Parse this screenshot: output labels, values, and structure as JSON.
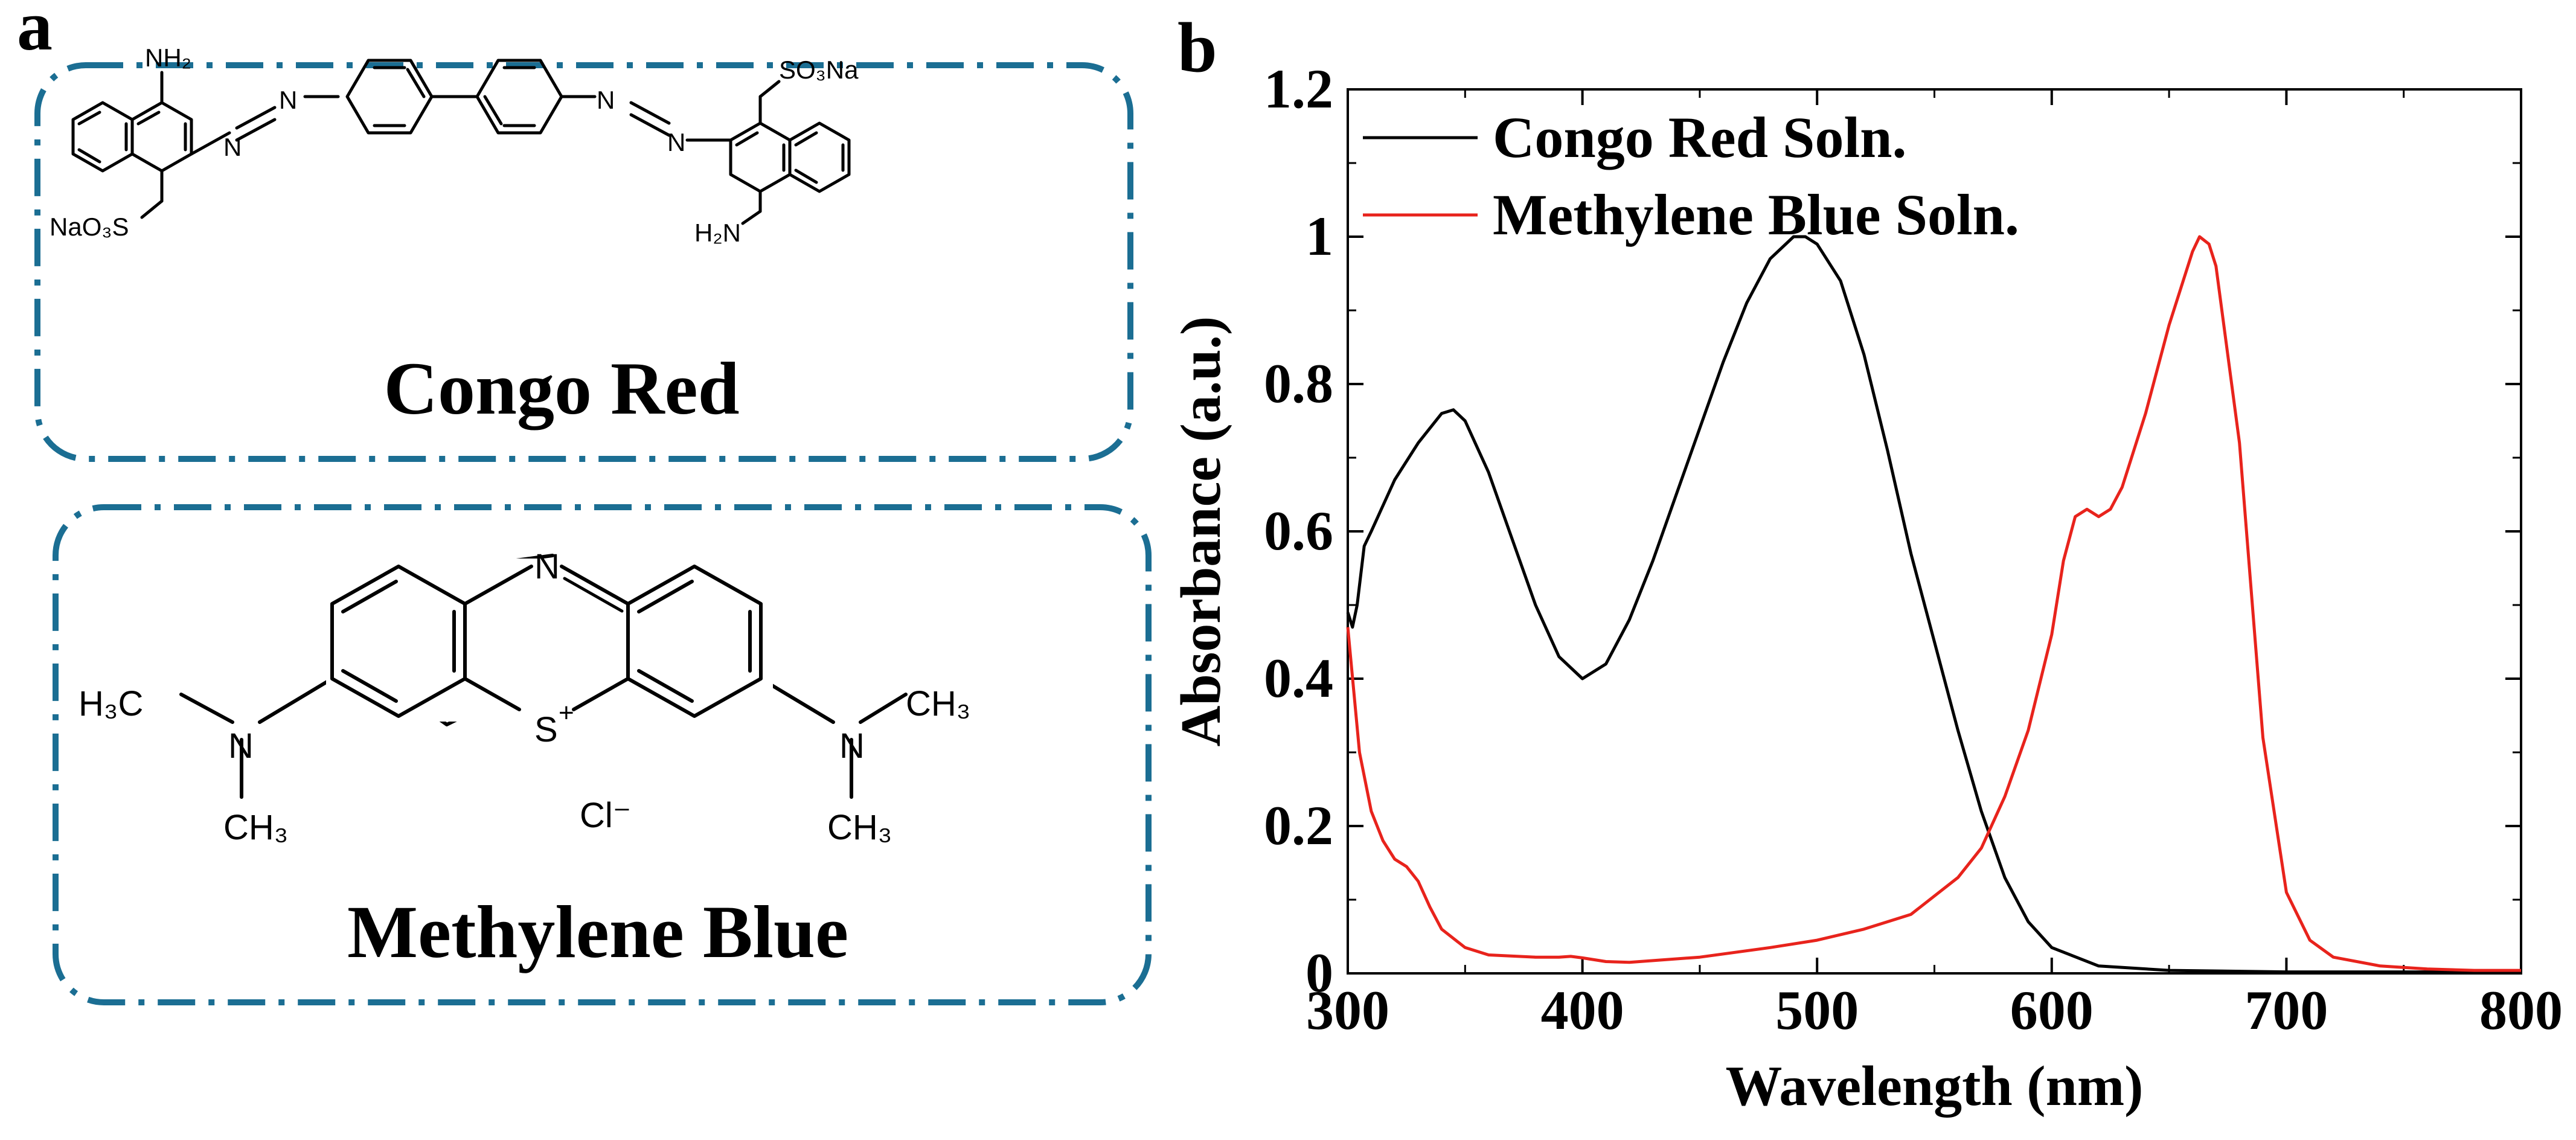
{
  "panel_a": {
    "label": "a",
    "box_color": "#1b6e93",
    "congo_red": {
      "name": "Congo Red",
      "groups": {
        "nh2_top": "NH₂",
        "nh2_bottom": "H₂N",
        "so3na_left": "NaO₃S",
        "so3na_right": "SO₃Na",
        "n": "N"
      }
    },
    "methylene_blue": {
      "name": "Methylene Blue",
      "groups": {
        "n_ring": "N",
        "s_ring": "S",
        "s_charge": "+",
        "h3c": "H₃C",
        "ch3": "CH₃",
        "n_amine": "N",
        "chloride": "Cl⁻"
      }
    }
  },
  "panel_b": {
    "label": "b"
  },
  "chart_data": {
    "type": "line",
    "xlabel": "Wavelength (nm)",
    "ylabel": "Absorbance (a.u.)",
    "xlim": [
      300,
      800
    ],
    "ylim": [
      0,
      1.2
    ],
    "xticks": [
      300,
      400,
      500,
      600,
      700,
      800
    ],
    "yticks": [
      0,
      0.2,
      0.4,
      0.6,
      0.8,
      1,
      1.2
    ],
    "ytick_labels": [
      "0",
      "0.2",
      "0.4",
      "0.6",
      "0.8",
      "1",
      "1.2"
    ],
    "grid": false,
    "legend": "top-left",
    "series": [
      {
        "name": "Congo Red Soln.",
        "color": "#000000",
        "x": [
          300,
          302,
          304,
          307,
          310,
          320,
          330,
          340,
          345,
          350,
          360,
          370,
          380,
          390,
          400,
          410,
          420,
          430,
          440,
          450,
          460,
          470,
          480,
          490,
          495,
          500,
          510,
          520,
          530,
          540,
          550,
          560,
          570,
          580,
          590,
          600,
          620,
          650,
          700,
          800
        ],
        "y": [
          0.49,
          0.47,
          0.5,
          0.58,
          0.6,
          0.67,
          0.72,
          0.76,
          0.765,
          0.75,
          0.68,
          0.59,
          0.5,
          0.43,
          0.4,
          0.42,
          0.48,
          0.56,
          0.65,
          0.74,
          0.83,
          0.91,
          0.97,
          1.0,
          1.0,
          0.99,
          0.94,
          0.84,
          0.71,
          0.57,
          0.45,
          0.33,
          0.22,
          0.13,
          0.07,
          0.035,
          0.01,
          0.004,
          0.002,
          0.002
        ]
      },
      {
        "name": "Methylene Blue Soln.",
        "color": "#e8231c",
        "x": [
          300,
          305,
          310,
          315,
          320,
          325,
          330,
          335,
          340,
          350,
          360,
          380,
          390,
          395,
          400,
          410,
          420,
          450,
          480,
          500,
          520,
          540,
          560,
          570,
          580,
          590,
          600,
          605,
          610,
          615,
          620,
          625,
          630,
          640,
          650,
          660,
          663,
          667,
          670,
          680,
          690,
          700,
          710,
          720,
          740,
          760,
          780,
          800
        ],
        "y": [
          0.47,
          0.3,
          0.22,
          0.18,
          0.155,
          0.145,
          0.125,
          0.09,
          0.06,
          0.035,
          0.025,
          0.022,
          0.022,
          0.023,
          0.021,
          0.016,
          0.015,
          0.022,
          0.035,
          0.045,
          0.06,
          0.08,
          0.13,
          0.17,
          0.24,
          0.33,
          0.46,
          0.56,
          0.62,
          0.63,
          0.62,
          0.63,
          0.66,
          0.76,
          0.88,
          0.98,
          1.0,
          0.99,
          0.96,
          0.72,
          0.32,
          0.11,
          0.045,
          0.022,
          0.01,
          0.006,
          0.004,
          0.004
        ]
      }
    ]
  }
}
